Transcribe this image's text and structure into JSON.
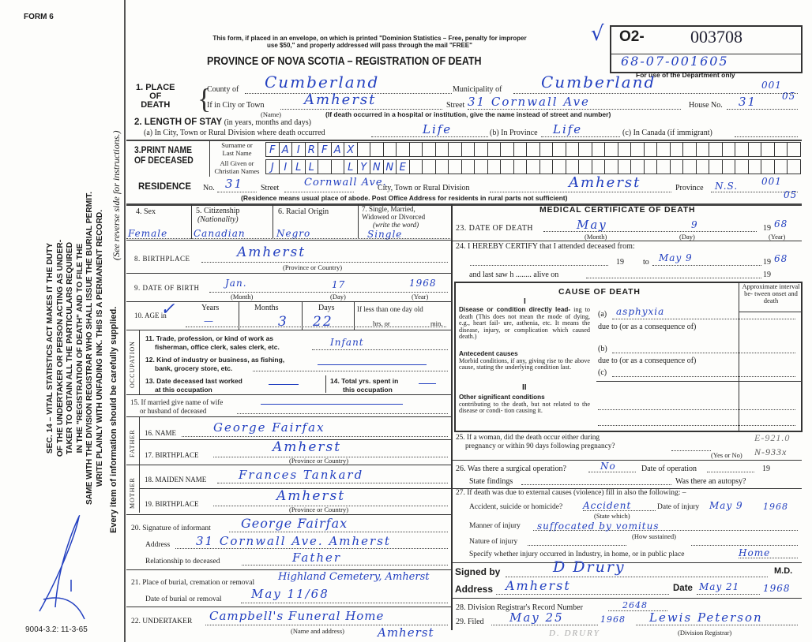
{
  "form_number": "FORM 6",
  "form_code": "9004-3.2: 11-3-65",
  "side_notice": [
    "SEC. 14 – VITAL STATISTICS ACT MAKES IT THE DUTY",
    "OF THE UNDERTAKER OR PERSON ACTING AS UNDER-",
    "TAKER TO OBTAIN ALL THE PARTICULARS REQUIRED",
    "IN THE \"REGISTRATION OF DEATH\" AND TO FILE THE",
    "SAME WITH THE DIVISION REGISTRAR WHO SHALL ISSUE THE BURIAL PERMIT.",
    "WRITE PLAINLY WITH UNFADING INK. THIS IS A PERMANENT RECORD."
  ],
  "side_every_item": "Every item of information should be carefully supplied.",
  "side_see_reverse": "(See reverse side for instructions.)",
  "header": {
    "mail_note_1": "This form, if placed in an envelope, on which is printed \"Dominion Statistics – Free, penalty for improper",
    "mail_note_2": "use $50,\" and properly addressed will pass through the mail \"FREE\"",
    "title": "PROVINCE OF NOVA SCOTIA – REGISTRATION OF DEATH",
    "checkmark": "√",
    "reg_prefix": "O2-",
    "reg_number": "003708",
    "dept_number": "68-07-001605",
    "dept_only": "For use of the Department only"
  },
  "place_of_death": {
    "label_1": "1. PLACE",
    "label_2": "OF",
    "label_3": "DEATH",
    "county_label": "County of",
    "county": "Cumberland",
    "municipality_label": "Municipality of",
    "municipality": "Cumberland",
    "code_1": "001",
    "code_2": "05",
    "city_label": "If in City or Town",
    "city": "Amherst",
    "name_note": "(Name)",
    "street_label": "Street",
    "street": "31 Cornwall Ave",
    "house_label": "House No.",
    "house": "31",
    "hospital_note": "(If death occurred in a hospital or institution, give the name instead of street and number)"
  },
  "length_of_stay": {
    "label": "2. LENGTH OF STAY",
    "label_note": "(in years, months and days)",
    "a_label": "(a) In City, Town or Rural Division where death occurred",
    "a_value": "Life",
    "b_label": "(b) In Province",
    "b_value": "Life",
    "c_label": "(c) In Canada (if immigrant)"
  },
  "name": {
    "label_1": "3.PRINT NAME",
    "label_2": "OF DECEASED",
    "surname_label_1": "Surname or",
    "surname_label_2": "Last Name",
    "given_label_1": "All Given or",
    "given_label_2": "Christian Names",
    "surname": "FAIRFAX",
    "given": "JILL  LYNNE"
  },
  "residence": {
    "label": "RESIDENCE",
    "no_label": "No.",
    "no": "31",
    "street_label": "Street",
    "street": "Cornwall Ave.",
    "city_label": "City, Town or Rural Division",
    "city": "Amherst",
    "province_label": "Province",
    "province": "N.S.",
    "code_1": "001",
    "code_2": "05",
    "note": "(Residence means usual place of abode. Post Office Address for residents in rural parts not sufficient)"
  },
  "personal": {
    "sex_label": "4. Sex",
    "sex": "Female",
    "citizenship_label": "5. Citizenship",
    "citizenship_sub": "(Nationality)",
    "citizenship": "Canadian",
    "racial_label": "6. Racial Origin",
    "racial": "Negro",
    "marital_label_1": "7. Single, Married,",
    "marital_label_2": "Widowed or Divorced",
    "marital_label_3": "(write the word)",
    "marital": "Single",
    "birthplace_label": "8. BIRTHPLACE",
    "birthplace": "Amherst",
    "province_country": "(Province or Country)",
    "dob_label": "9. DATE OF BIRTH",
    "dob_month": "Jan.",
    "dob_day": "17",
    "dob_year": "1968",
    "month_note": "(Month)",
    "day_note": "(Day)",
    "year_note": "(Year)",
    "age_label": "10. AGE in",
    "age_check": "✓",
    "years_label": "Years",
    "years": "—",
    "months_label": "Months",
    "months": "3",
    "days_label": "Days",
    "days": "22",
    "less_day": "If less than one day old",
    "hrs": "hrs. or",
    "min": "min."
  },
  "occupation": {
    "side_label": "OCCUPATION",
    "trade_1": "11. Trade, profession, or kind of work as",
    "trade_2": "fisherman, office clerk, sales clerk, etc.",
    "trade": "Infant",
    "industry_1": "12. Kind of industry or business, as fishing,",
    "industry_2": "bank, grocery store, etc.",
    "last_1": "13. Date deceased last worked",
    "last_2": "at this occupation",
    "total_1": "14. Total yrs. spent in",
    "total_2": "this occupation",
    "spouse_1": "15. If married give name of wife",
    "spouse_2": "or husband of deceased"
  },
  "father": {
    "side_label": "FATHER",
    "name_label": "16. NAME",
    "name": "George Fairfax",
    "birthplace_label": "17. BIRTHPLACE",
    "birthplace": "Amherst"
  },
  "mother": {
    "side_label": "MOTHER",
    "maiden_label": "18. MAIDEN NAME",
    "maiden": "Frances Tankard",
    "birthplace_label": "19. BIRTHPLACE",
    "birthplace": "Amherst"
  },
  "informant": {
    "sig_label": "20. Signature of informant",
    "signature": "George Fairfax",
    "address_label": "Address",
    "address": "31 Cornwall Ave. Amherst",
    "relation_label": "Relationship to deceased",
    "relation": "Father"
  },
  "burial": {
    "place_label": "21. Place of burial, cremation or removal",
    "place": "Highland Cemetery, Amherst",
    "date_label": "Date of burial or removal",
    "date": "May 11/68",
    "undertaker_label": "22. UNDERTAKER",
    "undertaker": "Campbell's Funeral Home",
    "undertaker_2": "Amherst",
    "name_address": "(Name and address)"
  },
  "medical": {
    "title": "MEDICAL CERTIFICATE OF DEATH",
    "dod_label": "23. DATE OF DEATH",
    "dod_month": "May",
    "dod_day": "9",
    "dod_year_prefix": "19",
    "dod_year": "68",
    "certify": "24. I HEREBY CERTIFY that I attended deceased from:",
    "from_19": "19",
    "to": "to",
    "to_date": "May 9",
    "to_year_prefix": "19",
    "to_year": "68",
    "last_saw": "and last saw h ........ alive on",
    "last_19": "19",
    "cause_title": "CAUSE OF DEATH",
    "interval": "Approximate interval be- tween onset and death",
    "part_1": "I",
    "direct_title": "Disease or condition directly lead-",
    "direct_text": "ing to death (This does not mean the mode of dying, e.g., heart fail- ure, asthenia, etc. It means the disease, injury, or complication which caused death.)",
    "a_label": "(a)",
    "cause_a": "asphyxia",
    "due_to": "due to (or as a consequence of)",
    "antecedent_title": "Antecedent causes",
    "antecedent_text": "Morbid conditions, if any, giving rise to the above cause, stating the underlying condition last.",
    "b_label": "(b)",
    "c_label": "(c)",
    "part_2": "II",
    "other_title": "Other significant conditions",
    "other_text": "contributing to the death, but not related to the disease or condi- tion causing it."
  },
  "q25": {
    "label_1": "25. If a woman, did the death occur either during",
    "label_2": "pregnancy or within 90 days following pregnancy?",
    "yes_no": "(Yes or No)",
    "code_1": "E-921.0",
    "code_2": "N-933x"
  },
  "q26": {
    "label": "26. Was there a surgical operation?",
    "value": "No",
    "date_label": "Date of operation",
    "year": "19",
    "findings": "State findings",
    "autopsy": "Was there an autopsy?"
  },
  "q27": {
    "label": "27. If death was due to external causes (violence) fill in also the following: –",
    "accident_label": "Accident, suicide or homicide?",
    "accident": "Accident",
    "state_which": "(State which)",
    "injury_date_label": "Date of injury",
    "injury_date": "May 9",
    "injury_year": "1968",
    "manner_label": "Manner of injury",
    "manner": "suffocated by vomitus",
    "how": "(How sustained)",
    "nature_label": "Nature of injury",
    "specify_label": "Specify whether injury occurred in Industry, in home, or in public place",
    "specify": "Home"
  },
  "signed": {
    "label": "Signed by",
    "signature": "D Drury",
    "md": "M.D.",
    "address_label": "Address",
    "address": "Amherst",
    "date_label": "Date",
    "date": "May 21",
    "year": "1968"
  },
  "registrar": {
    "record_label": "28. Division Registrar's Record Number",
    "record": "2648",
    "filed_label": "29. Filed",
    "filed": "May 25",
    "year": "1968",
    "signature": "Lewis Peterson",
    "registrar_note": "(Division Registrar)",
    "stamp": "D. DRURY"
  },
  "colors": {
    "ink": "#2340c0",
    "print": "#1c1c1c",
    "paper": "#fdfdfb"
  }
}
